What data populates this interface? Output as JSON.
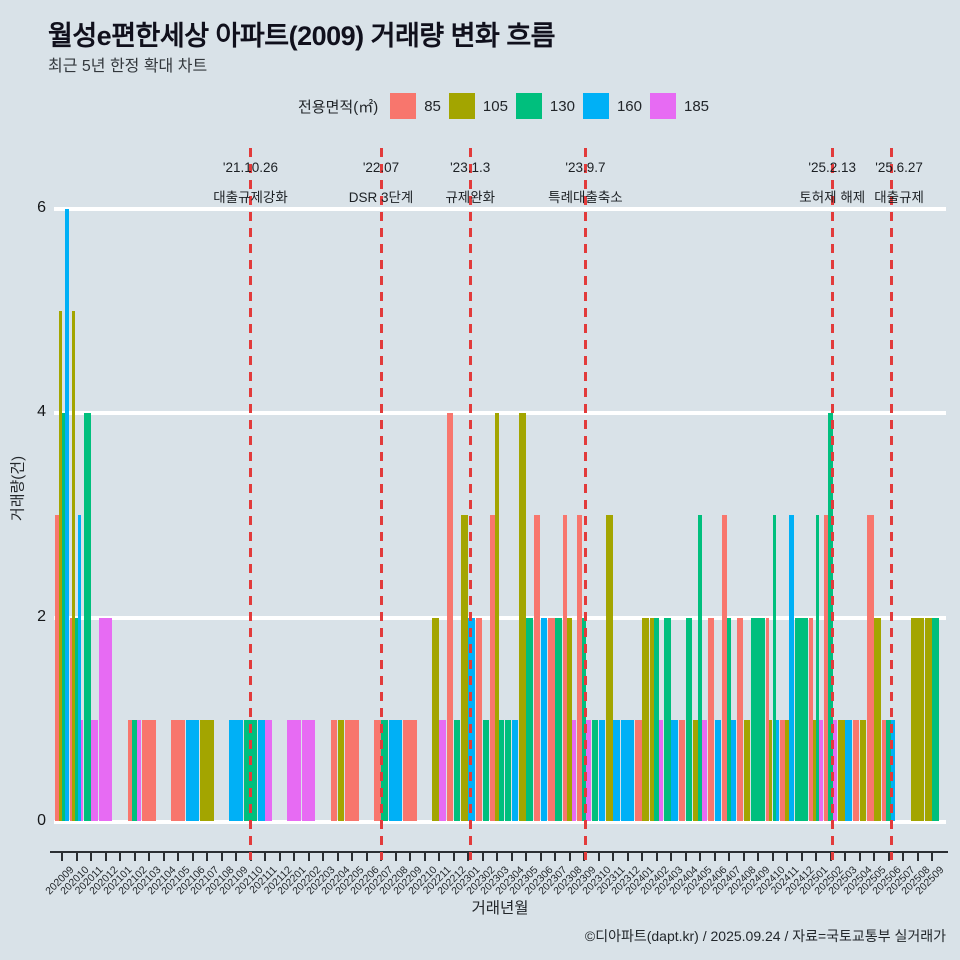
{
  "header": {
    "title": "월성e편한세상 아파트(2009) 거래량 변화 흐름",
    "subtitle": "최근 5년 한정 확대 차트"
  },
  "legend": {
    "title": "전용면적(㎡)",
    "items": [
      {
        "label": "85",
        "color": "#F8766D"
      },
      {
        "label": "105",
        "color": "#A3A500"
      },
      {
        "label": "130",
        "color": "#00BF7D"
      },
      {
        "label": "160",
        "color": "#00B0F6"
      },
      {
        "label": "185",
        "color": "#E76BF3"
      }
    ]
  },
  "chart_data": {
    "type": "bar",
    "title": "월성e편한세상 아파트(2009) 거래량 변화 흐름",
    "subtitle": "최근 5년 한정 확대 차트",
    "xlabel": "거래년월",
    "ylabel": "거래량(건)",
    "ylim": [
      0,
      6
    ],
    "yticks": [
      0,
      2,
      4,
      6
    ],
    "grid": "horizontal-white",
    "legend_position": "top",
    "categories": [
      "202009",
      "202010",
      "202011",
      "202012",
      "202101",
      "202102",
      "202103",
      "202104",
      "202105",
      "202106",
      "202107",
      "202108",
      "202109",
      "202110",
      "202111",
      "202112",
      "202201",
      "202202",
      "202203",
      "202204",
      "202205",
      "202206",
      "202207",
      "202208",
      "202209",
      "202210",
      "202211",
      "202212",
      "202301",
      "202302",
      "202303",
      "202304",
      "202305",
      "202306",
      "202307",
      "202308",
      "202309",
      "202310",
      "202311",
      "202312",
      "202401",
      "202402",
      "202403",
      "202404",
      "202405",
      "202406",
      "202407",
      "202408",
      "202409",
      "202410",
      "202411",
      "202412",
      "202501",
      "202502",
      "202503",
      "202504",
      "202505",
      "202506",
      "202507",
      "202508",
      "202509"
    ],
    "series": [
      {
        "name": "85",
        "color": "#F8766D",
        "values": [
          3,
          2,
          0,
          0,
          0,
          1,
          1,
          0,
          1,
          0,
          0,
          0,
          0,
          0,
          0,
          0,
          0,
          0,
          0,
          1,
          1,
          0,
          1,
          0,
          1,
          0,
          0,
          4,
          0,
          2,
          3,
          0,
          0,
          3,
          2,
          3,
          3,
          0,
          0,
          0,
          1,
          0,
          0,
          1,
          0,
          2,
          3,
          2,
          0,
          2,
          1,
          0,
          2,
          3,
          0,
          1,
          3,
          1,
          0,
          0,
          0
        ]
      },
      {
        "name": "105",
        "color": "#A3A500",
        "values": [
          5,
          5,
          0,
          0,
          0,
          0,
          0,
          0,
          0,
          0,
          1,
          0,
          0,
          0,
          0,
          0,
          0,
          0,
          0,
          1,
          0,
          0,
          0,
          0,
          0,
          0,
          2,
          0,
          3,
          0,
          4,
          0,
          4,
          0,
          0,
          2,
          0,
          0,
          3,
          0,
          2,
          2,
          0,
          0,
          1,
          0,
          0,
          1,
          0,
          1,
          1,
          0,
          1,
          0,
          1,
          1,
          2,
          0,
          0,
          2,
          2
        ]
      },
      {
        "name": "130",
        "color": "#00BF7D",
        "values": [
          4,
          2,
          4,
          0,
          0,
          1,
          0,
          0,
          0,
          0,
          0,
          0,
          0,
          1,
          0,
          0,
          0,
          0,
          0,
          0,
          0,
          0,
          1,
          0,
          0,
          0,
          0,
          1,
          0,
          1,
          1,
          1,
          2,
          0,
          2,
          0,
          2,
          1,
          0,
          0,
          0,
          2,
          2,
          2,
          3,
          0,
          2,
          0,
          2,
          3,
          0,
          2,
          3,
          4,
          0,
          0,
          0,
          1,
          0,
          0,
          2
        ]
      },
      {
        "name": "160",
        "color": "#00B0F6",
        "values": [
          6,
          3,
          0,
          0,
          0,
          0,
          0,
          0,
          0,
          1,
          0,
          0,
          1,
          0,
          1,
          0,
          0,
          0,
          0,
          0,
          0,
          0,
          0,
          1,
          0,
          0,
          0,
          0,
          2,
          0,
          0,
          1,
          0,
          2,
          0,
          0,
          0,
          1,
          1,
          1,
          0,
          0,
          1,
          0,
          0,
          1,
          1,
          0,
          0,
          1,
          3,
          0,
          0,
          0,
          1,
          0,
          0,
          1,
          0,
          0,
          0
        ]
      },
      {
        "name": "185",
        "color": "#E76BF3",
        "values": [
          0,
          1,
          1,
          2,
          0,
          1,
          0,
          0,
          0,
          0,
          0,
          0,
          0,
          0,
          1,
          0,
          1,
          1,
          0,
          0,
          0,
          0,
          0,
          0,
          0,
          0,
          1,
          0,
          0,
          0,
          0,
          0,
          0,
          0,
          0,
          1,
          1,
          0,
          0,
          0,
          0,
          1,
          0,
          0,
          1,
          0,
          0,
          0,
          0,
          0,
          0,
          0,
          1,
          1,
          0,
          0,
          0,
          0,
          0,
          0,
          0
        ]
      }
    ],
    "annotations": [
      {
        "date": "'21.10.26",
        "label": "대출규제강화",
        "pos": 13.0,
        "text_dx": 0
      },
      {
        "date": "'22.07",
        "label": "DSR 3단계",
        "pos": 22.0,
        "text_dx": 0
      },
      {
        "date": "'23.1.3",
        "label": "규제완화",
        "pos": 28.15,
        "text_dx": 0
      },
      {
        "date": "'23.9.7",
        "label": "특례대출축소",
        "pos": 36.1,
        "text_dx": 0
      },
      {
        "date": "'25.2.13",
        "label": "토허제 해제",
        "pos": 53.12,
        "text_dx": 0
      },
      {
        "date": "'25.6.27",
        "label": "대출규제",
        "pos": 57.18,
        "text_dx": 8
      }
    ],
    "event_line_color": "#e23b3b"
  },
  "axes": {
    "x_title": "거래년월",
    "y_title": "거래량(건)"
  },
  "footer": {
    "credit": "©디아파트(dapt.kr) / 2025.09.24 / 자료=국토교통부 실거래가"
  }
}
